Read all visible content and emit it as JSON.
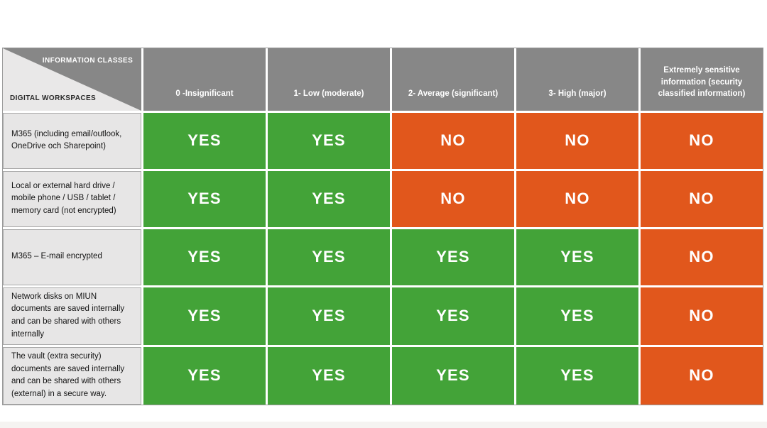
{
  "table": {
    "corner": {
      "top_label": "INFORMATION CLASSES",
      "bottom_label": "DIGITAL WORKSPACES"
    },
    "columns": [
      "0 -Insignificant",
      "1- Low (moderate)",
      "2- Average (significant)",
      "3- High (major)",
      "Extremely sensitive information (security classified information)"
    ],
    "rows": [
      {
        "label": "M365 (including email/outlook, OneDrive och Sharepoint)",
        "values": [
          "YES",
          "YES",
          "NO",
          "NO",
          "NO"
        ]
      },
      {
        "label": "Local or external hard drive / mobile phone / USB / tablet / memory card (not encrypted)",
        "values": [
          "YES",
          "YES",
          "NO",
          "NO",
          "NO"
        ]
      },
      {
        "label": "M365 – E-mail encrypted",
        "values": [
          "YES",
          "YES",
          "YES",
          "YES",
          "NO"
        ]
      },
      {
        "label": "Network disks on MIUN documents are saved internally and can be shared with others internally",
        "values": [
          "YES",
          "YES",
          "YES",
          "YES",
          "NO"
        ]
      },
      {
        "label": "The vault (extra security) documents are saved internally and can be shared with others (external) in a secure way.",
        "values": [
          "YES",
          "YES",
          "YES",
          "YES",
          "NO"
        ]
      }
    ],
    "colors": {
      "yes": "#43a338",
      "no": "#e1571c",
      "header_bg": "#878787",
      "label_bg": "#e7e6e6",
      "corner_triangle": "#878787"
    }
  }
}
